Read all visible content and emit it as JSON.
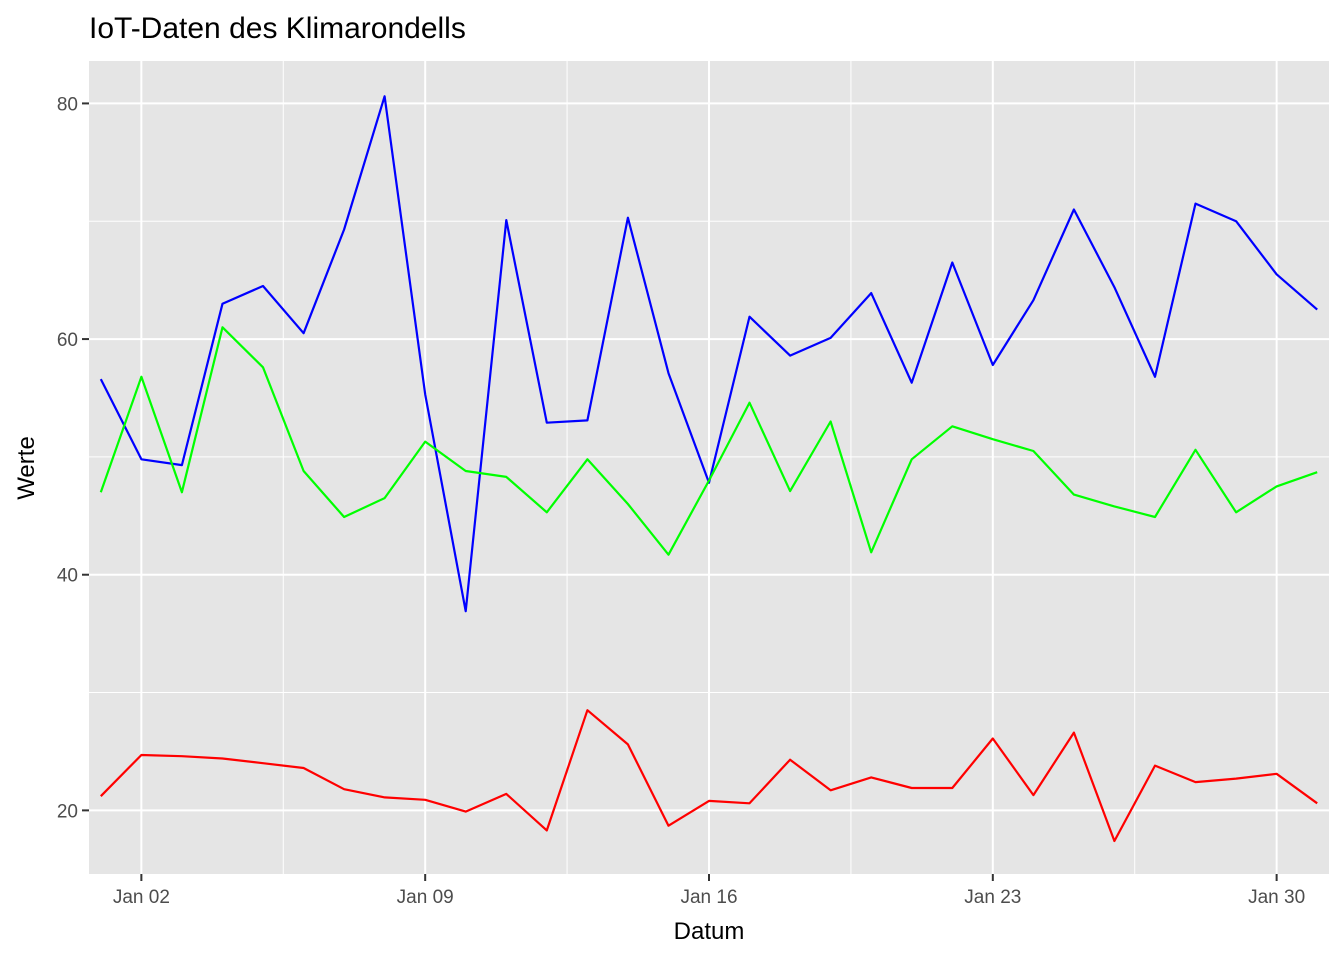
{
  "chart_data": {
    "type": "line",
    "title": "IoT-Daten des Klimarondells",
    "xlabel": "Datum",
    "ylabel": "Werte",
    "x": [
      "2024-01-01",
      "2024-01-02",
      "2024-01-03",
      "2024-01-04",
      "2024-01-05",
      "2024-01-06",
      "2024-01-07",
      "2024-01-08",
      "2024-01-09",
      "2024-01-10",
      "2024-01-11",
      "2024-01-12",
      "2024-01-13",
      "2024-01-14",
      "2024-01-15",
      "2024-01-16",
      "2024-01-17",
      "2024-01-18",
      "2024-01-19",
      "2024-01-20",
      "2024-01-21",
      "2024-01-22",
      "2024-01-23",
      "2024-01-24",
      "2024-01-25",
      "2024-01-26",
      "2024-01-27",
      "2024-01-28",
      "2024-01-29",
      "2024-01-30",
      "2024-01-31"
    ],
    "xlim": [
      "2023-12-31T17:00",
      "2024-01-31T07:00"
    ],
    "ylim": [
      14.6,
      83.6
    ],
    "x_ticks": [
      {
        "date": "2024-01-02",
        "label": "Jan 02"
      },
      {
        "date": "2024-01-09",
        "label": "Jan 09"
      },
      {
        "date": "2024-01-16",
        "label": "Jan 16"
      },
      {
        "date": "2024-01-23",
        "label": "Jan 23"
      },
      {
        "date": "2024-01-30",
        "label": "Jan 30"
      }
    ],
    "x_minor_ticks": [
      "2023-12-29T12:00",
      "2024-01-05T12:00",
      "2024-01-12T12:00",
      "2024-01-19T12:00",
      "2024-01-26T12:00"
    ],
    "y_ticks": [
      20,
      40,
      60,
      80
    ],
    "y_minor_ticks": [
      30,
      50,
      70
    ],
    "grid": true,
    "legend": "none",
    "background": "#e5e5e5",
    "series": [
      {
        "color": "#0000ff",
        "values": [
          56.6,
          49.8,
          49.3,
          63.0,
          64.5,
          60.5,
          69.3,
          80.6,
          55.3,
          36.9,
          70.1,
          52.9,
          53.1,
          70.3,
          57.1,
          47.8,
          61.9,
          58.6,
          60.1,
          63.9,
          56.3,
          66.5,
          57.8,
          63.3,
          71.0,
          64.4,
          56.8,
          71.5,
          70.0,
          65.5,
          62.5
        ]
      },
      {
        "color": "#00ff00",
        "values": [
          47.0,
          56.8,
          47.0,
          61.0,
          57.6,
          48.8,
          44.9,
          46.5,
          51.3,
          48.8,
          48.3,
          45.3,
          49.8,
          46.0,
          41.7,
          48.0,
          54.6,
          47.1,
          53.0,
          41.9,
          49.8,
          52.6,
          51.5,
          50.5,
          46.8,
          45.8,
          44.9,
          50.6,
          45.3,
          47.5,
          48.7
        ]
      },
      {
        "color": "#ff0000",
        "values": [
          21.2,
          24.7,
          24.6,
          24.4,
          24.0,
          23.6,
          21.8,
          21.1,
          20.9,
          19.9,
          21.4,
          18.3,
          28.5,
          25.6,
          18.7,
          20.8,
          20.6,
          24.3,
          21.7,
          22.8,
          21.9,
          21.9,
          26.1,
          21.3,
          26.6,
          17.4,
          23.8,
          22.4,
          22.7,
          23.1,
          20.6
        ]
      }
    ]
  }
}
